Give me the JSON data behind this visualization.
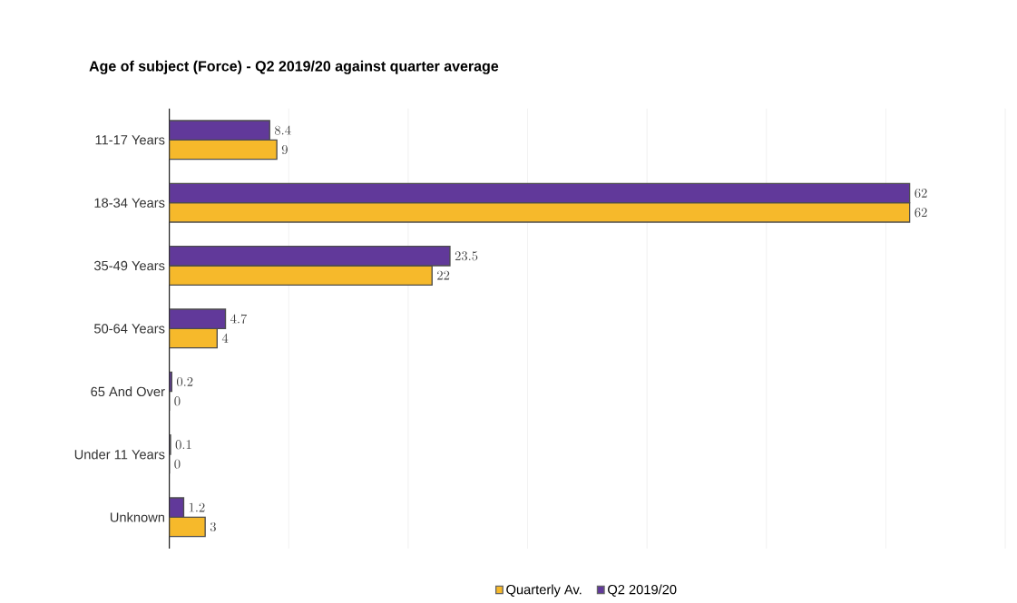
{
  "chart_data": {
    "type": "bar",
    "orientation": "horizontal",
    "title": "Age of subject (Force) - Q2 2019/20 against quarter average",
    "categories": [
      "11-17 Years",
      "18-34 Years",
      "35-49 Years",
      "50-64 Years",
      "65 And Over",
      "Under 11 Years",
      "Unknown"
    ],
    "series": [
      {
        "name": "Quarterly Av.",
        "color": "#f6b92b",
        "values": [
          9,
          62,
          22,
          4,
          0,
          0,
          3
        ]
      },
      {
        "name": "Q2 2019/20",
        "color": "#61399a",
        "values": [
          8.4,
          62,
          23.5,
          4.7,
          0.2,
          0.1,
          1.2
        ]
      }
    ],
    "xlim": [
      0,
      70
    ],
    "xticks": [
      {
        "value": 0,
        "label": null
      },
      {
        "value": 10,
        "label": null
      },
      {
        "value": 20,
        "label": null
      },
      {
        "value": 30,
        "label": null
      },
      {
        "value": 40,
        "label": null
      },
      {
        "value": 50,
        "label": null
      },
      {
        "value": 60,
        "label": null
      },
      {
        "value": 70,
        "label": null
      }
    ],
    "grid": "x",
    "legend": "bottom",
    "tick_labels": "y",
    "data_labels": true
  }
}
